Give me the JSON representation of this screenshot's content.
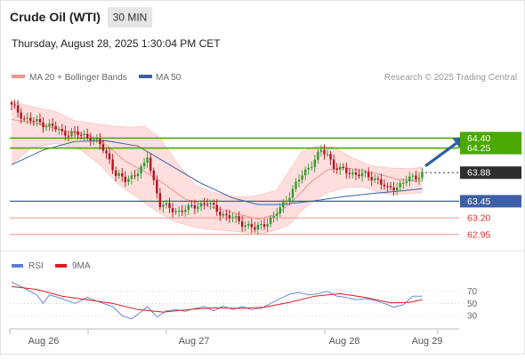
{
  "header": {
    "instrument": "Crude Oil (WTI)",
    "timeframe": "30 MIN",
    "datetime": "Thursday, August 28, 2025 1:30:04 PM CET"
  },
  "legend_main": [
    {
      "label": "MA 20 + Bollinger Bands",
      "color": "#f4928c"
    },
    {
      "label": "MA 50",
      "color": "#3d5fa6"
    }
  ],
  "credit": "Research © 2025 Trading Central",
  "legend_rsi": [
    {
      "label": "RSI",
      "color": "#5b7fd6"
    },
    {
      "label": "9MA",
      "color": "#dd1b1b"
    }
  ],
  "colors": {
    "up": "#2e9a2e",
    "down": "#b3121c",
    "resistance": "#4aa800",
    "support_blue": "#3d5fa6",
    "support_red": "#f4928c",
    "last_price": "#2e2e2e",
    "band_fill": "#ffdede",
    "arrow": "#2a5fa8"
  },
  "chart_data": [
    {
      "type": "candlestick",
      "ylim": [
        62.84,
        64.98
      ],
      "x_labels": [
        "Aug 26",
        "Aug 27",
        "Aug 28",
        "Aug 29"
      ],
      "levels": [
        {
          "value": 64.4,
          "label": "64.40",
          "kind": "resistance"
        },
        {
          "value": 64.25,
          "label": "64.25",
          "kind": "resistance"
        },
        {
          "value": 63.88,
          "label": "63.88",
          "kind": "last"
        },
        {
          "value": 63.45,
          "label": "63.45",
          "kind": "support_blue"
        },
        {
          "value": 63.2,
          "label": "63.20",
          "kind": "support_red"
        },
        {
          "value": 62.95,
          "label": "62.95",
          "kind": "support_red"
        }
      ],
      "anchors": [
        [
          0,
          64.88
        ],
        [
          2,
          64.8
        ],
        [
          4,
          64.7
        ],
        [
          7,
          64.65
        ],
        [
          10,
          64.62
        ],
        [
          13,
          64.57
        ],
        [
          16,
          64.48
        ],
        [
          19,
          64.48
        ],
        [
          22,
          64.44
        ],
        [
          25,
          64.42
        ],
        [
          28,
          64.3
        ],
        [
          31,
          64.08
        ],
        [
          33,
          63.85
        ],
        [
          36,
          63.76
        ],
        [
          39,
          63.86
        ],
        [
          42,
          63.98
        ],
        [
          43,
          64.12
        ],
        [
          45,
          63.76
        ],
        [
          47,
          63.4
        ],
        [
          50,
          63.34
        ],
        [
          53,
          63.3
        ],
        [
          56,
          63.34
        ],
        [
          59,
          63.4
        ],
        [
          62,
          63.42
        ],
        [
          65,
          63.32
        ],
        [
          68,
          63.22
        ],
        [
          71,
          63.18
        ],
        [
          74,
          63.1
        ],
        [
          77,
          63.03
        ],
        [
          80,
          63.12
        ],
        [
          83,
          63.2
        ],
        [
          86,
          63.42
        ],
        [
          89,
          63.62
        ],
        [
          92,
          63.85
        ],
        [
          95,
          64.02
        ],
        [
          98,
          64.2
        ],
        [
          100,
          64.16
        ],
        [
          102,
          63.98
        ],
        [
          104,
          63.92
        ],
        [
          107,
          63.88
        ],
        [
          110,
          63.86
        ],
        [
          113,
          63.82
        ],
        [
          116,
          63.78
        ],
        [
          119,
          63.62
        ],
        [
          122,
          63.68
        ],
        [
          125,
          63.76
        ],
        [
          128,
          63.82
        ],
        [
          130,
          63.88
        ]
      ],
      "ma50": [
        [
          0,
          64.0
        ],
        [
          10,
          64.22
        ],
        [
          20,
          64.35
        ],
        [
          30,
          64.36
        ],
        [
          40,
          64.28
        ],
        [
          50,
          64.0
        ],
        [
          60,
          63.72
        ],
        [
          70,
          63.5
        ],
        [
          78,
          63.4
        ],
        [
          85,
          63.4
        ],
        [
          95,
          63.45
        ],
        [
          105,
          63.52
        ],
        [
          115,
          63.57
        ],
        [
          122,
          63.6
        ],
        [
          130,
          63.64
        ]
      ],
      "ma20": [
        [
          0,
          64.68
        ],
        [
          8,
          64.62
        ],
        [
          16,
          64.52
        ],
        [
          24,
          64.45
        ],
        [
          30,
          64.3
        ],
        [
          36,
          64.05
        ],
        [
          42,
          63.9
        ],
        [
          48,
          63.72
        ],
        [
          55,
          63.48
        ],
        [
          62,
          63.38
        ],
        [
          70,
          63.28
        ],
        [
          78,
          63.18
        ],
        [
          84,
          63.25
        ],
        [
          90,
          63.5
        ],
        [
          95,
          63.75
        ],
        [
          100,
          63.92
        ],
        [
          105,
          63.96
        ],
        [
          110,
          63.92
        ],
        [
          116,
          63.86
        ],
        [
          122,
          63.78
        ],
        [
          130,
          63.75
        ]
      ],
      "bb_upper": [
        [
          0,
          64.95
        ],
        [
          6,
          64.88
        ],
        [
          14,
          64.8
        ],
        [
          20,
          64.66
        ],
        [
          26,
          64.62
        ],
        [
          32,
          64.58
        ],
        [
          38,
          64.56
        ],
        [
          42,
          64.58
        ],
        [
          47,
          64.4
        ],
        [
          52,
          64.05
        ],
        [
          58,
          63.7
        ],
        [
          64,
          63.58
        ],
        [
          70,
          63.52
        ],
        [
          76,
          63.52
        ],
        [
          80,
          63.56
        ],
        [
          84,
          63.62
        ],
        [
          88,
          63.92
        ],
        [
          92,
          64.2
        ],
        [
          97,
          64.28
        ],
        [
          102,
          64.26
        ],
        [
          108,
          64.1
        ],
        [
          114,
          63.98
        ],
        [
          120,
          63.95
        ],
        [
          126,
          63.94
        ],
        [
          130,
          63.96
        ]
      ],
      "bb_lower": [
        [
          0,
          64.0
        ],
        [
          6,
          64.25
        ],
        [
          14,
          64.32
        ],
        [
          22,
          64.22
        ],
        [
          28,
          64.0
        ],
        [
          34,
          63.7
        ],
        [
          40,
          63.5
        ],
        [
          46,
          63.3
        ],
        [
          52,
          63.14
        ],
        [
          58,
          63.06
        ],
        [
          64,
          63.02
        ],
        [
          70,
          63.0
        ],
        [
          76,
          62.96
        ],
        [
          80,
          62.97
        ],
        [
          84,
          63.02
        ],
        [
          88,
          63.1
        ],
        [
          92,
          63.32
        ],
        [
          96,
          63.46
        ],
        [
          100,
          63.58
        ],
        [
          106,
          63.66
        ],
        [
          112,
          63.66
        ],
        [
          118,
          63.56
        ],
        [
          124,
          63.56
        ],
        [
          130,
          63.58
        ]
      ],
      "projection": {
        "from": [
          131,
          63.98
        ],
        "to": [
          143,
          64.4
        ]
      }
    },
    {
      "type": "line",
      "ylim": [
        10,
        100
      ],
      "y_ticks": [
        70,
        50,
        30
      ],
      "rsi": [
        [
          0,
          85
        ],
        [
          4,
          75
        ],
        [
          8,
          64
        ],
        [
          10,
          50
        ],
        [
          12,
          64
        ],
        [
          16,
          58
        ],
        [
          20,
          50
        ],
        [
          24,
          60
        ],
        [
          28,
          52
        ],
        [
          32,
          45
        ],
        [
          35,
          30
        ],
        [
          38,
          25
        ],
        [
          40,
          32
        ],
        [
          43,
          45
        ],
        [
          46,
          28
        ],
        [
          49,
          38
        ],
        [
          52,
          40
        ],
        [
          55,
          37
        ],
        [
          58,
          42
        ],
        [
          61,
          45
        ],
        [
          64,
          38
        ],
        [
          67,
          46
        ],
        [
          70,
          40
        ],
        [
          73,
          45
        ],
        [
          76,
          40
        ],
        [
          79,
          42
        ],
        [
          82,
          50
        ],
        [
          85,
          58
        ],
        [
          88,
          65
        ],
        [
          91,
          68
        ],
        [
          94,
          64
        ],
        [
          97,
          66
        ],
        [
          100,
          70
        ],
        [
          103,
          62
        ],
        [
          106,
          60
        ],
        [
          109,
          56
        ],
        [
          112,
          58
        ],
        [
          115,
          55
        ],
        [
          118,
          50
        ],
        [
          121,
          44
        ],
        [
          124,
          48
        ],
        [
          127,
          62
        ],
        [
          130,
          62
        ]
      ],
      "rsi_ma": [
        [
          0,
          78
        ],
        [
          8,
          73
        ],
        [
          16,
          62
        ],
        [
          24,
          56
        ],
        [
          32,
          50
        ],
        [
          40,
          40
        ],
        [
          48,
          36
        ],
        [
          56,
          40
        ],
        [
          64,
          43
        ],
        [
          72,
          42
        ],
        [
          80,
          44
        ],
        [
          88,
          52
        ],
        [
          96,
          62
        ],
        [
          104,
          66
        ],
        [
          112,
          60
        ],
        [
          120,
          51
        ],
        [
          126,
          52
        ],
        [
          130,
          56
        ]
      ]
    }
  ]
}
